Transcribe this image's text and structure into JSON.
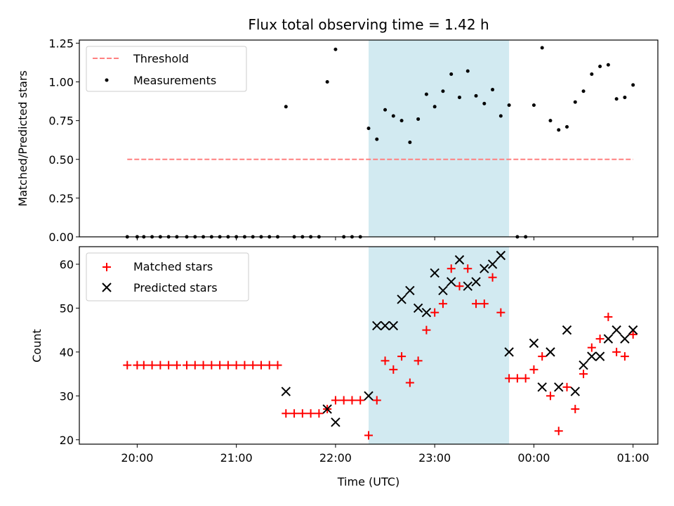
{
  "chart_data": [
    {
      "type": "scatter",
      "title": "Flux total observing time = 1.42 h",
      "xlabel": "",
      "ylabel": "Matched/Predicted stars",
      "ylim": [
        0,
        1.27
      ],
      "yticks": [
        0.0,
        0.25,
        0.5,
        0.75,
        1.0,
        1.25
      ],
      "xticks": [
        0,
        60,
        120,
        180,
        240,
        300
      ],
      "x_unit": "minutes after 20:00 UTC",
      "xlim": [
        -35,
        315
      ],
      "shaded_region": {
        "x_start": 140,
        "x_end": 225,
        "color": "#add8e6"
      },
      "legend": {
        "placement": "top-left"
      },
      "series": [
        {
          "name": "Threshold",
          "style": "dashed-line",
          "color": "#ff8080",
          "x": [
            -6,
            300
          ],
          "y": [
            0.5,
            0.5
          ]
        },
        {
          "name": "Measurements",
          "style": "dot",
          "color": "#000000",
          "points": [
            [
              -6,
              0
            ],
            [
              0,
              0
            ],
            [
              4,
              0
            ],
            [
              9,
              0
            ],
            [
              14,
              0
            ],
            [
              19,
              0
            ],
            [
              24,
              0
            ],
            [
              30,
              0
            ],
            [
              35,
              0
            ],
            [
              40,
              0
            ],
            [
              45,
              0
            ],
            [
              50,
              0
            ],
            [
              55,
              0
            ],
            [
              60,
              0
            ],
            [
              65,
              0
            ],
            [
              70,
              0
            ],
            [
              75,
              0
            ],
            [
              80,
              0
            ],
            [
              85,
              0
            ],
            [
              90,
              0.84
            ],
            [
              95,
              0
            ],
            [
              100,
              0
            ],
            [
              105,
              0
            ],
            [
              110,
              0
            ],
            [
              115,
              1.0
            ],
            [
              120,
              1.21
            ],
            [
              125,
              0
            ],
            [
              130,
              0
            ],
            [
              135,
              0
            ],
            [
              140,
              0.7
            ],
            [
              145,
              0.63
            ],
            [
              150,
              0.82
            ],
            [
              155,
              0.78
            ],
            [
              160,
              0.75
            ],
            [
              165,
              0.61
            ],
            [
              170,
              0.76
            ],
            [
              175,
              0.92
            ],
            [
              180,
              0.84
            ],
            [
              185,
              0.94
            ],
            [
              190,
              1.05
            ],
            [
              195,
              0.9
            ],
            [
              200,
              1.07
            ],
            [
              205,
              0.91
            ],
            [
              210,
              0.86
            ],
            [
              215,
              0.95
            ],
            [
              220,
              0.78
            ],
            [
              225,
              0.85
            ],
            [
              230,
              0
            ],
            [
              235,
              0
            ],
            [
              240,
              0.85
            ],
            [
              245,
              1.22
            ],
            [
              250,
              0.75
            ],
            [
              255,
              0.69
            ],
            [
              260,
              0.71
            ],
            [
              265,
              0.87
            ],
            [
              270,
              0.94
            ],
            [
              275,
              1.05
            ],
            [
              280,
              1.1
            ],
            [
              285,
              1.11
            ],
            [
              290,
              0.89
            ],
            [
              295,
              0.9
            ],
            [
              300,
              0.98
            ]
          ]
        }
      ]
    },
    {
      "type": "scatter",
      "title": "",
      "xlabel": "Time (UTC)",
      "ylabel": "Count",
      "ylim": [
        19,
        64
      ],
      "yticks": [
        20,
        30,
        40,
        50,
        60
      ],
      "xticks": [
        0,
        60,
        120,
        180,
        240,
        300
      ],
      "xticklabels": [
        "20:00",
        "21:00",
        "22:00",
        "23:00",
        "00:00",
        "01:00"
      ],
      "x_unit": "minutes after 20:00 UTC",
      "xlim": [
        -35,
        315
      ],
      "shaded_region": {
        "x_start": 140,
        "x_end": 225,
        "color": "#add8e6"
      },
      "legend": {
        "placement": "top-left"
      },
      "series": [
        {
          "name": "Matched stars",
          "marker": "plus",
          "color": "#ff0000",
          "points": [
            [
              -6,
              37
            ],
            [
              0,
              37
            ],
            [
              4,
              37
            ],
            [
              9,
              37
            ],
            [
              14,
              37
            ],
            [
              19,
              37
            ],
            [
              24,
              37
            ],
            [
              30,
              37
            ],
            [
              35,
              37
            ],
            [
              40,
              37
            ],
            [
              45,
              37
            ],
            [
              50,
              37
            ],
            [
              55,
              37
            ],
            [
              60,
              37
            ],
            [
              65,
              37
            ],
            [
              70,
              37
            ],
            [
              75,
              37
            ],
            [
              80,
              37
            ],
            [
              85,
              37
            ],
            [
              90,
              26
            ],
            [
              95,
              26
            ],
            [
              100,
              26
            ],
            [
              105,
              26
            ],
            [
              110,
              26
            ],
            [
              115,
              27
            ],
            [
              120,
              29
            ],
            [
              125,
              29
            ],
            [
              130,
              29
            ],
            [
              135,
              29
            ],
            [
              140,
              21
            ],
            [
              145,
              29
            ],
            [
              150,
              38
            ],
            [
              155,
              36
            ],
            [
              160,
              39
            ],
            [
              165,
              33
            ],
            [
              170,
              38
            ],
            [
              175,
              45
            ],
            [
              180,
              49
            ],
            [
              185,
              51
            ],
            [
              190,
              59
            ],
            [
              195,
              55
            ],
            [
              200,
              59
            ],
            [
              205,
              51
            ],
            [
              210,
              51
            ],
            [
              215,
              57
            ],
            [
              220,
              49
            ],
            [
              225,
              34
            ],
            [
              230,
              34
            ],
            [
              235,
              34
            ],
            [
              240,
              36
            ],
            [
              245,
              39
            ],
            [
              250,
              30
            ],
            [
              255,
              22
            ],
            [
              260,
              32
            ],
            [
              265,
              27
            ],
            [
              270,
              35
            ],
            [
              275,
              41
            ],
            [
              280,
              43
            ],
            [
              285,
              48
            ],
            [
              290,
              40
            ],
            [
              295,
              39
            ],
            [
              300,
              44
            ]
          ]
        },
        {
          "name": "Predicted stars",
          "marker": "x",
          "color": "#000000",
          "points": [
            [
              90,
              31
            ],
            [
              115,
              27
            ],
            [
              120,
              24
            ],
            [
              140,
              30
            ],
            [
              145,
              46
            ],
            [
              150,
              46
            ],
            [
              155,
              46
            ],
            [
              160,
              52
            ],
            [
              165,
              54
            ],
            [
              170,
              50
            ],
            [
              175,
              49
            ],
            [
              180,
              58
            ],
            [
              185,
              54
            ],
            [
              190,
              56
            ],
            [
              195,
              61
            ],
            [
              200,
              55
            ],
            [
              205,
              56
            ],
            [
              210,
              59
            ],
            [
              215,
              60
            ],
            [
              220,
              62
            ],
            [
              225,
              40
            ],
            [
              240,
              42
            ],
            [
              245,
              32
            ],
            [
              250,
              40
            ],
            [
              255,
              32
            ],
            [
              260,
              45
            ],
            [
              265,
              31
            ],
            [
              270,
              37
            ],
            [
              275,
              39
            ],
            [
              280,
              39
            ],
            [
              285,
              43
            ],
            [
              290,
              45
            ],
            [
              295,
              43
            ],
            [
              300,
              45
            ]
          ]
        }
      ]
    }
  ]
}
